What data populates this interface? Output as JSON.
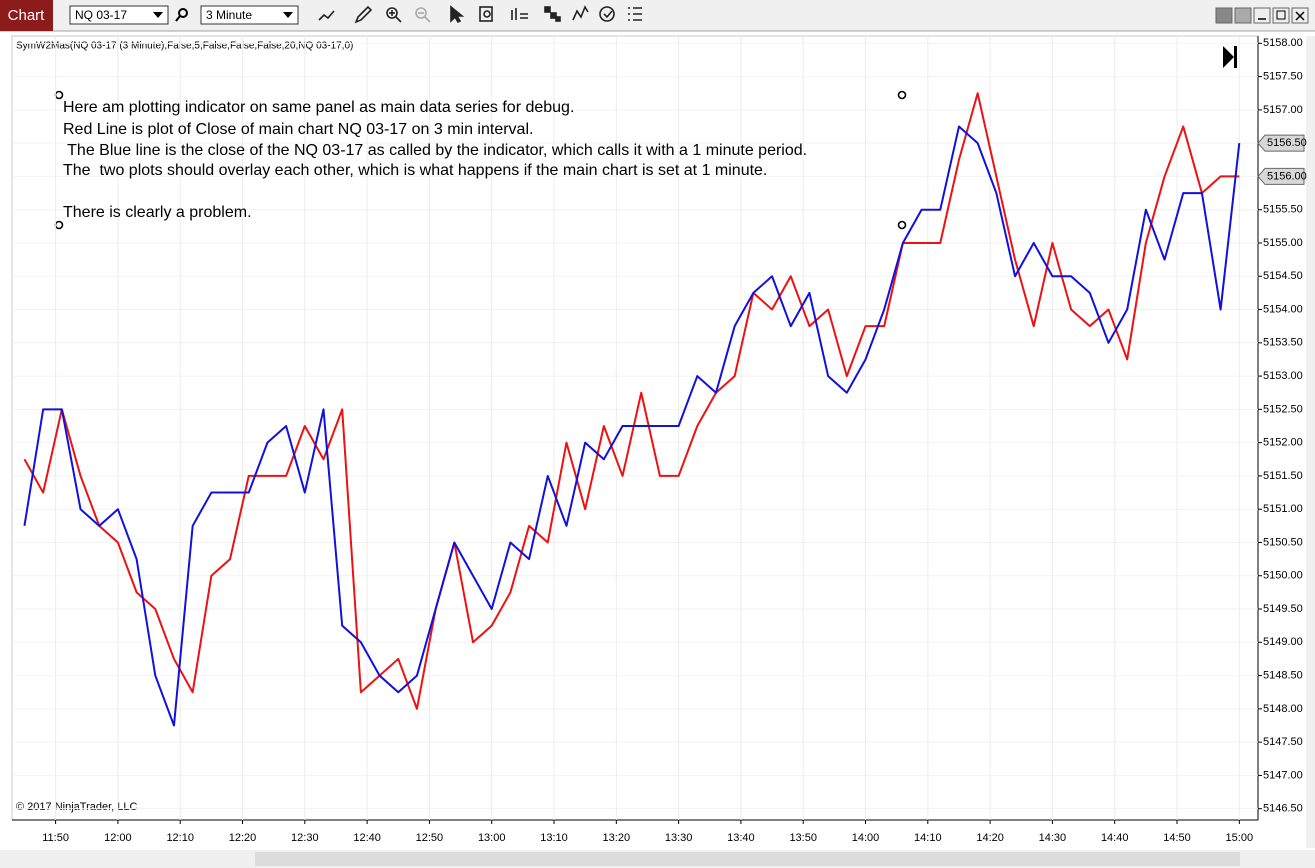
{
  "toolbar": {
    "tab": "Chart",
    "instrument": "NQ 03-17",
    "interval": "3 Minute"
  },
  "indicator_label": "SymW2Mas(NQ 03-17 (3 Minute),False,5,False,False,False,20,NQ 03-17,0)",
  "copyright": "© 2017 NinjaTrader, LLC",
  "chart_data": {
    "type": "line",
    "annotation_lines": [
      "Here am plotting indicator on same panel as main data series for debug.",
      "Red Line is plot of Close of main chart NQ 03-17 on 3 min interval.",
      " The Blue line is the close of the NQ 03-17 as called by the indicator, which calls it with a 1 minute period.",
      "The  two plots should overlay each other, which is what happens if the main chart is set at 1 minute.",
      "There is clearly a problem."
    ],
    "x": [
      "11:45",
      "11:48",
      "11:51",
      "11:54",
      "11:57",
      "12:00",
      "12:03",
      "12:06",
      "12:09",
      "12:12",
      "12:15",
      "12:18",
      "12:21",
      "12:24",
      "12:27",
      "12:30",
      "12:33",
      "12:36",
      "12:39",
      "12:42",
      "12:45",
      "12:48",
      "12:51",
      "12:54",
      "12:57",
      "13:00",
      "13:03",
      "13:06",
      "13:09",
      "13:12",
      "13:15",
      "13:18",
      "13:21",
      "13:24",
      "13:27",
      "13:30",
      "13:33",
      "13:36",
      "13:39",
      "13:42",
      "13:45",
      "13:48",
      "13:51",
      "13:54",
      "13:57",
      "14:00",
      "14:03",
      "14:06",
      "14:09",
      "14:12",
      "14:15",
      "14:18",
      "14:21",
      "14:24",
      "14:27",
      "14:30",
      "14:33",
      "14:36",
      "14:39",
      "14:42",
      "14:45",
      "14:48",
      "14:51",
      "14:54",
      "14:57",
      "15:00"
    ],
    "series": [
      {
        "name": "Close",
        "color": "#ee1111",
        "values": [
          5151.75,
          5151.25,
          5152.5,
          5151.5,
          5150.75,
          5150.5,
          5149.75,
          5149.5,
          5148.75,
          5148.25,
          5150.0,
          5150.25,
          5151.5,
          5151.5,
          5151.5,
          5152.25,
          5151.75,
          5152.5,
          5148.25,
          5148.5,
          5148.75,
          5148.0,
          5149.5,
          5150.5,
          5149.0,
          5149.25,
          5149.75,
          5150.75,
          5150.5,
          5152.0,
          5151.0,
          5152.25,
          5151.5,
          5152.75,
          5151.5,
          5151.5,
          5152.25,
          5152.75,
          5153.0,
          5154.25,
          5154.0,
          5154.5,
          5153.75,
          5154.0,
          5153.0,
          5153.75,
          5153.75,
          5155.0,
          5155.0,
          5155.0,
          5156.25,
          5157.25,
          5156.0,
          5154.75,
          5153.75,
          5155.0,
          5154.0,
          5153.75,
          5154.0,
          5153.25,
          5155.0,
          5156.0,
          5156.75,
          5155.75,
          5156.0,
          5156.0
        ]
      },
      {
        "name": "SymW2Mas",
        "color": "#1111dd",
        "values": [
          5150.75,
          5152.5,
          5152.5,
          5151.0,
          5150.75,
          5151.0,
          5150.25,
          5148.5,
          5147.75,
          5150.75,
          5151.25,
          5151.25,
          5151.25,
          5152.0,
          5152.25,
          5151.25,
          5152.5,
          5149.25,
          5149.0,
          5148.5,
          5148.25,
          5148.5,
          5149.5,
          5150.5,
          5150.0,
          5149.5,
          5150.5,
          5150.25,
          5151.5,
          5150.75,
          5152.0,
          5151.75,
          5152.25,
          5152.25,
          5152.25,
          5152.25,
          5153.0,
          5152.75,
          5153.75,
          5154.25,
          5154.5,
          5153.75,
          5154.25,
          5153.0,
          5152.75,
          5153.25,
          5154.0,
          5155.0,
          5155.5,
          5155.5,
          5156.75,
          5156.5,
          5155.75,
          5154.5,
          5155.0,
          5154.5,
          5154.5,
          5154.25,
          5153.5,
          5154.0,
          5155.5,
          5154.75,
          5155.75,
          5155.75,
          5154.0,
          5156.5
        ]
      }
    ],
    "price_markers": [
      {
        "value": 5156.5,
        "label": "5156.50",
        "color": "#1111dd"
      },
      {
        "value": 5156.0,
        "label": "5156.00",
        "color": "#ee1111"
      }
    ],
    "xlim": [
      "11:43",
      "15:03"
    ],
    "xticks": [
      "11:50",
      "12:00",
      "12:10",
      "12:20",
      "12:30",
      "12:40",
      "12:50",
      "13:00",
      "13:10",
      "13:20",
      "13:30",
      "13:40",
      "13:50",
      "14:00",
      "14:10",
      "14:20",
      "14:30",
      "14:40",
      "14:50",
      "15:00"
    ],
    "ylim": [
      5146.33,
      5158.11
    ],
    "yticks": [
      {
        "value": 5146.5,
        "label": "5146.50"
      },
      {
        "value": 5147.0,
        "label": "5147.00"
      },
      {
        "value": 5147.5,
        "label": "5147.50"
      },
      {
        "value": 5148.0,
        "label": "5148.00"
      },
      {
        "value": 5148.5,
        "label": "5148.50"
      },
      {
        "value": 5149.0,
        "label": "5149.00"
      },
      {
        "value": 5149.5,
        "label": "5149.50"
      },
      {
        "value": 5150.0,
        "label": "5150.00"
      },
      {
        "value": 5150.5,
        "label": "5150.50"
      },
      {
        "value": 5151.0,
        "label": "5151.00"
      },
      {
        "value": 5151.5,
        "label": "5151.50"
      },
      {
        "value": 5152.0,
        "label": "5152.00"
      },
      {
        "value": 5152.5,
        "label": "5152.50"
      },
      {
        "value": 5153.0,
        "label": "5153.00"
      },
      {
        "value": 5153.5,
        "label": "5153.50"
      },
      {
        "value": 5154.0,
        "label": "5154.00"
      },
      {
        "value": 5154.5,
        "label": "5154.50"
      },
      {
        "value": 5155.0,
        "label": "5155.00"
      },
      {
        "value": 5155.5,
        "label": "5155.50"
      },
      {
        "value": 5156.0,
        "label": "5156.00"
      },
      {
        "value": 5156.5,
        "label": "5156.50"
      },
      {
        "value": 5157.0,
        "label": "5157.00"
      },
      {
        "value": 5157.5,
        "label": "5157.50"
      },
      {
        "value": 5158.0,
        "label": "5158.00"
      }
    ],
    "grid": true
  }
}
